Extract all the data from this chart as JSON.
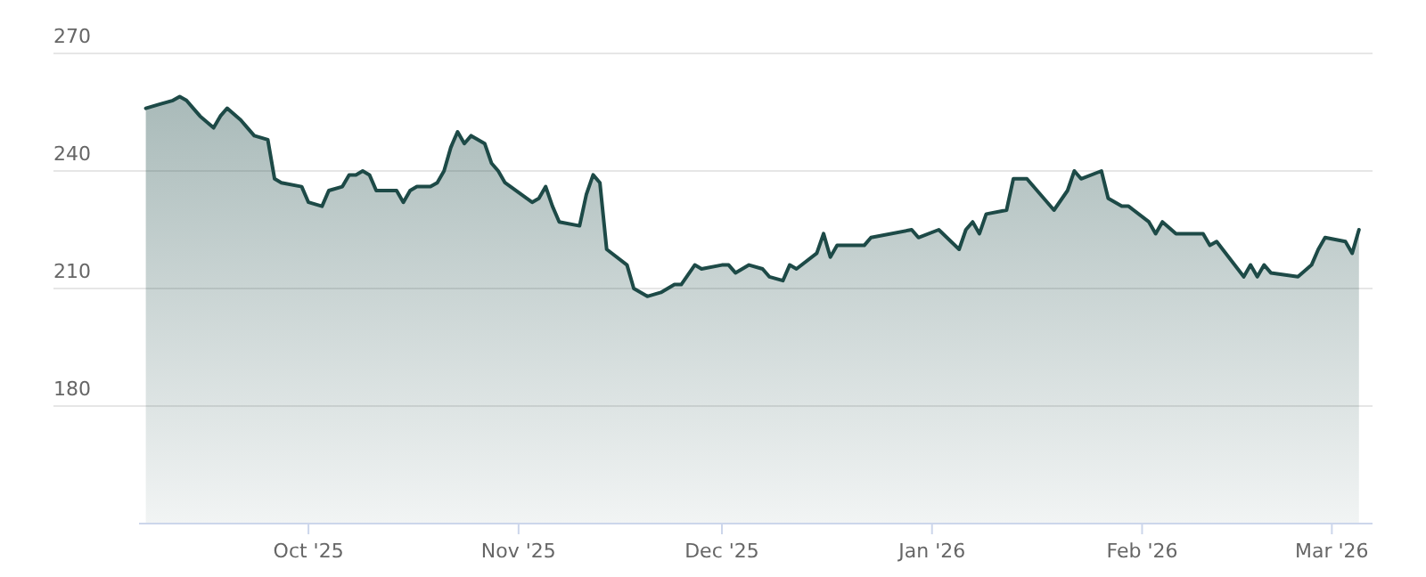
{
  "chart_data": {
    "type": "area",
    "x": [
      "2025-09-07",
      "2025-09-09",
      "2025-09-11",
      "2025-09-12",
      "2025-09-13",
      "2025-09-14",
      "2025-09-15",
      "2025-09-17",
      "2025-09-18",
      "2025-09-19",
      "2025-09-21",
      "2025-09-22",
      "2025-09-23",
      "2025-09-25",
      "2025-09-26",
      "2025-09-27",
      "2025-09-30",
      "2025-10-01",
      "2025-10-03",
      "2025-10-04",
      "2025-10-06",
      "2025-10-07",
      "2025-10-08",
      "2025-10-09",
      "2025-10-10",
      "2025-10-11",
      "2025-10-14",
      "2025-10-15",
      "2025-10-16",
      "2025-10-17",
      "2025-10-19",
      "2025-10-20",
      "2025-10-21",
      "2025-10-22",
      "2025-10-23",
      "2025-10-24",
      "2025-10-25",
      "2025-10-27",
      "2025-10-28",
      "2025-10-29",
      "2025-10-30",
      "2025-11-03",
      "2025-11-04",
      "2025-11-05",
      "2025-11-06",
      "2025-11-07",
      "2025-11-10",
      "2025-11-11",
      "2025-11-12",
      "2025-11-13",
      "2025-11-14",
      "2025-11-17",
      "2025-11-18",
      "2025-11-20",
      "2025-11-22",
      "2025-11-24",
      "2025-11-25",
      "2025-11-27",
      "2025-11-28",
      "2025-12-01",
      "2025-12-02",
      "2025-12-03",
      "2025-12-05",
      "2025-12-07",
      "2025-12-08",
      "2025-12-10",
      "2025-12-11",
      "2025-12-12",
      "2025-12-15",
      "2025-12-16",
      "2025-12-17",
      "2025-12-18",
      "2025-12-22",
      "2025-12-23",
      "2025-12-29",
      "2025-12-30",
      "2026-01-02",
      "2026-01-05",
      "2026-01-06",
      "2026-01-07",
      "2026-01-08",
      "2026-01-09",
      "2026-01-12",
      "2026-01-13",
      "2026-01-15",
      "2026-01-19",
      "2026-01-21",
      "2026-01-22",
      "2026-01-23",
      "2026-01-26",
      "2026-01-27",
      "2026-01-29",
      "2026-01-30",
      "2026-02-02",
      "2026-02-03",
      "2026-02-04",
      "2026-02-06",
      "2026-02-10",
      "2026-02-11",
      "2026-02-12",
      "2026-02-16",
      "2026-02-17",
      "2026-02-18",
      "2026-02-19",
      "2026-02-20",
      "2026-02-24",
      "2026-02-26",
      "2026-02-27",
      "2026-02-28",
      "2026-03-03",
      "2026-03-04",
      "2026-03-05"
    ],
    "series": [
      {
        "color": "#1d4a47",
        "values": [
          256,
          257,
          258,
          259,
          258,
          256,
          254,
          251,
          254,
          256,
          253,
          251,
          249,
          248,
          238,
          237,
          236,
          232,
          231,
          235,
          236,
          239,
          239,
          240,
          239,
          235,
          235,
          232,
          235,
          236,
          236,
          237,
          240,
          246,
          250,
          247,
          249,
          247,
          242,
          240,
          237,
          232,
          233,
          236,
          231,
          227,
          226,
          234,
          239,
          237,
          220,
          216,
          210,
          208,
          209,
          211,
          211,
          216,
          215,
          216,
          216,
          214,
          216,
          215,
          213,
          212,
          216,
          215,
          219,
          224,
          218,
          221,
          221,
          223,
          225,
          223,
          225,
          220,
          225,
          227,
          224,
          229,
          230,
          238,
          238,
          230,
          235,
          240,
          238,
          240,
          233,
          231,
          231,
          227,
          224,
          227,
          224,
          224,
          221,
          222,
          213,
          216,
          213,
          216,
          214,
          213,
          216,
          220,
          223,
          222,
          219,
          225
        ]
      }
    ],
    "xlim": [
      "2025-09-06",
      "2026-03-07"
    ],
    "xticks": [
      {
        "value": "2025-10-01",
        "label": "Oct '25"
      },
      {
        "value": "2025-11-01",
        "label": "Nov '25"
      },
      {
        "value": "2025-12-01",
        "label": "Dec '25"
      },
      {
        "value": "2026-01-01",
        "label": "Jan '26"
      },
      {
        "value": "2026-02-01",
        "label": "Feb '26"
      },
      {
        "value": "2026-03-01",
        "label": "Mar '26"
      }
    ],
    "ylim": [
      150,
      270
    ],
    "yticks": [
      180,
      210,
      240,
      270
    ],
    "grid": "y"
  }
}
